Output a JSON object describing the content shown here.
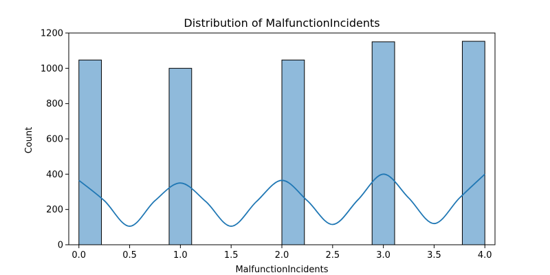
{
  "chart_data": {
    "type": "bar",
    "title": "Distribution of MalfunctionIncidents",
    "xlabel": "MalfunctionIncidents",
    "ylabel": "Count",
    "xlim": [
      -0.1,
      4.1
    ],
    "ylim": [
      0,
      1200
    ],
    "xticks": [
      "0.0",
      "0.5",
      "1.0",
      "1.5",
      "2.0",
      "2.5",
      "3.0",
      "3.5",
      "4.0"
    ],
    "xtick_values": [
      0,
      0.5,
      1,
      1.5,
      2,
      2.5,
      3,
      3.5,
      4
    ],
    "yticks": [
      "0",
      "200",
      "400",
      "600",
      "800",
      "1000",
      "1200"
    ],
    "ytick_values": [
      0,
      200,
      400,
      600,
      800,
      1000,
      1200
    ],
    "bins": [
      {
        "x0": 0.0,
        "x1": 0.222,
        "count": 1047
      },
      {
        "x0": 0.889,
        "x1": 1.111,
        "count": 1000
      },
      {
        "x0": 2.0,
        "x1": 2.222,
        "count": 1047
      },
      {
        "x0": 2.889,
        "x1": 3.111,
        "count": 1150
      },
      {
        "x0": 3.778,
        "x1": 4.0,
        "count": 1153
      }
    ],
    "kde": {
      "x": [
        0,
        0.25,
        0.5,
        0.75,
        1,
        1.25,
        1.5,
        1.75,
        2,
        2.25,
        2.5,
        2.75,
        3,
        3.25,
        3.5,
        3.75,
        4
      ],
      "y": [
        365,
        250,
        105,
        250,
        350,
        245,
        105,
        245,
        365,
        250,
        115,
        255,
        400,
        265,
        120,
        265,
        400
      ]
    },
    "grid": false,
    "colors": {
      "bar_fill": "#8fbadb",
      "bar_edge": "#000000",
      "kde_line": "#1f77b4",
      "axes": "#000000"
    }
  }
}
